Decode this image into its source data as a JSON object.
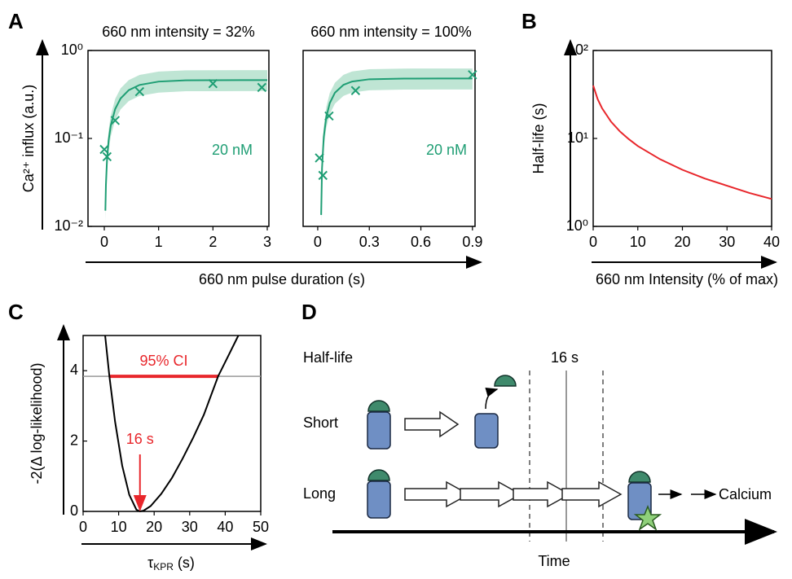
{
  "panel_labels": [
    "A",
    "B",
    "C",
    "D"
  ],
  "chart_data": [
    {
      "type": "scatter",
      "title": "660 nm intensity = 32%",
      "x_label": "660 nm pulse duration (s)",
      "y_label": "Ca²⁺ influx (a.u.)",
      "annotation": "20 nM",
      "color": "#1f9e74",
      "band_color": "#a9dcc6",
      "yscale": "log",
      "xlim": [
        -0.3,
        3.03
      ],
      "ylim": [
        0.01,
        1
      ],
      "xticks": [
        0,
        1,
        2,
        3
      ],
      "yticks": [
        {
          "value": 0.01,
          "label": "10⁻²"
        },
        {
          "value": 0.1,
          "label": "10⁻¹"
        },
        {
          "value": 1,
          "label": "10⁰"
        }
      ],
      "x": [
        0.0,
        0.05,
        0.2,
        0.65,
        2.0,
        2.9
      ],
      "values": [
        0.075,
        0.062,
        0.16,
        0.34,
        0.42,
        0.38
      ],
      "fit": {
        "x": [
          0.02,
          0.03,
          0.05,
          0.08,
          0.12,
          0.2,
          0.3,
          0.45,
          0.65,
          1,
          1.5,
          2,
          2.5,
          3
        ],
        "y": [
          0.0151,
          0.0297,
          0.0574,
          0.0957,
          0.141,
          0.216,
          0.285,
          0.354,
          0.406,
          0.443,
          0.458,
          0.459,
          0.46,
          0.46
        ],
        "upper": [
          0.0196,
          0.0386,
          0.0746,
          0.124,
          0.183,
          0.281,
          0.371,
          0.46,
          0.528,
          0.576,
          0.595,
          0.597,
          0.598,
          0.598
        ],
        "lower": [
          0.0113,
          0.0223,
          0.043,
          0.0718,
          0.106,
          0.162,
          0.214,
          0.266,
          0.305,
          0.332,
          0.344,
          0.344,
          0.345,
          0.345
        ]
      }
    },
    {
      "type": "scatter",
      "title": "660 nm intensity = 100%",
      "annotation": "20 nM",
      "color": "#1f9e74",
      "band_color": "#a9dcc6",
      "yscale": "log",
      "xlim": [
        -0.085,
        0.915
      ],
      "ylim": [
        0.01,
        1
      ],
      "xticks": [
        0,
        0.3,
        0.6,
        0.9
      ],
      "x": [
        0.01,
        0.03,
        0.066,
        0.22,
        0.9
      ],
      "values": [
        0.06,
        0.038,
        0.18,
        0.35,
        0.53
      ],
      "fit": {
        "x": [
          0.02,
          0.025,
          0.035,
          0.05,
          0.07,
          0.1,
          0.15,
          0.2,
          0.3,
          0.5,
          0.7,
          0.9
        ],
        "y": [
          0.0135,
          0.0457,
          0.104,
          0.176,
          0.252,
          0.331,
          0.407,
          0.444,
          0.471,
          0.479,
          0.48,
          0.48
        ],
        "upper": [
          0.0176,
          0.0594,
          0.135,
          0.229,
          0.328,
          0.43,
          0.529,
          0.577,
          0.612,
          0.623,
          0.624,
          0.624
        ],
        "lower": [
          0.0101,
          0.0343,
          0.078,
          0.132,
          0.189,
          0.248,
          0.305,
          0.333,
          0.353,
          0.359,
          0.36,
          0.36
        ]
      }
    },
    {
      "type": "line",
      "x_label": "660 nm Intensity (% of max)",
      "y_label": "Half-life (s)",
      "color": "#e8262b",
      "yscale": "log",
      "xlim": [
        0,
        40
      ],
      "ylim": [
        1,
        100
      ],
      "xticks": [
        0,
        10,
        20,
        30,
        40
      ],
      "yticks": [
        {
          "value": 1,
          "label": "10⁰"
        },
        {
          "value": 10,
          "label": "10¹"
        },
        {
          "value": 100,
          "label": "10²"
        }
      ],
      "x": [
        0,
        1,
        2,
        4,
        6,
        8,
        10,
        15,
        20,
        25,
        30,
        35,
        40
      ],
      "values": [
        40,
        28,
        22,
        15.5,
        12,
        9.8,
        8.2,
        5.8,
        4.4,
        3.5,
        2.9,
        2.4,
        2.05
      ]
    },
    {
      "type": "line",
      "x_label": {
        "symbol": "τ",
        "subscript": "KPR",
        "unit": " (s)"
      },
      "y_label": "-2(Δ log-likelihood)",
      "color": "#000000",
      "highlight_color": "#e8262b",
      "threshold_color": "#999999",
      "xlim": [
        0,
        50
      ],
      "ylim": [
        0,
        5
      ],
      "xticks": [
        0,
        10,
        20,
        30,
        40,
        50
      ],
      "yticks": [
        0,
        2,
        4
      ],
      "x": [
        6.2,
        7.4,
        9,
        11,
        13,
        15,
        16,
        17,
        19,
        22,
        25,
        28,
        31,
        34,
        38,
        41,
        43.7
      ],
      "values": [
        5.0,
        3.84,
        2.55,
        1.3,
        0.47,
        0.05,
        0,
        0.02,
        0.15,
        0.5,
        0.95,
        1.5,
        2.1,
        2.75,
        3.84,
        4.45,
        5.0
      ],
      "ci": {
        "label": "95% CI",
        "level": 3.84,
        "lower": 7.4,
        "upper": 38
      },
      "estimate": {
        "label": "16 s",
        "x": 16
      }
    }
  ],
  "diagram": {
    "half_life": "Half-life",
    "threshold": "16 s",
    "short": "Short",
    "long": "Long",
    "output": "Calcium",
    "time": "Time"
  }
}
